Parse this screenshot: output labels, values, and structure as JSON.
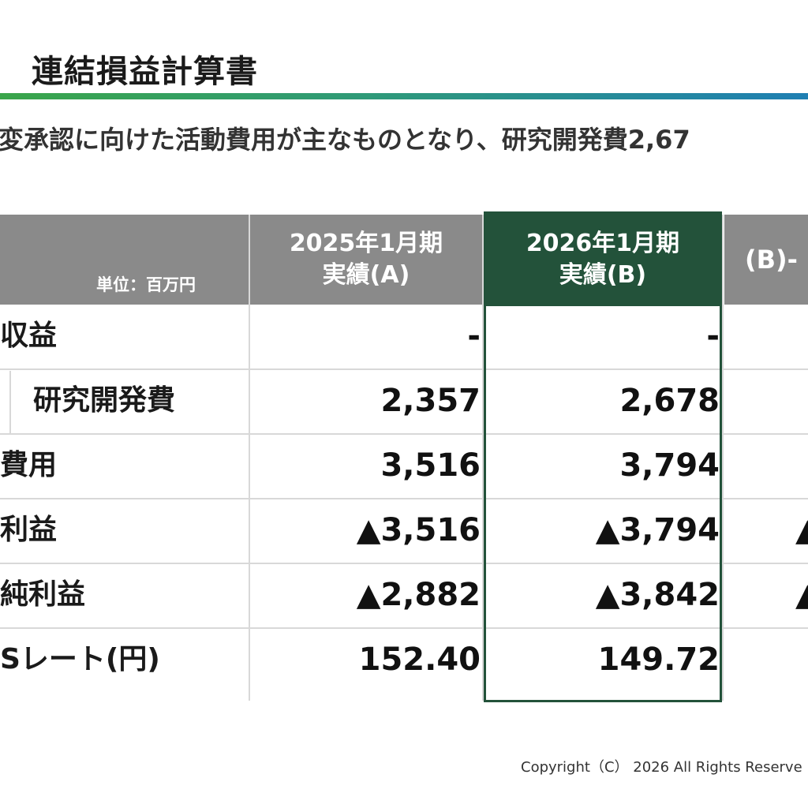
{
  "title": "連結損益計算書",
  "subtitle": "･変承認に向けた活動費用が主なものとなり、研究開発費2,67",
  "table": {
    "unit_label": "単位：百万円",
    "headers": {
      "a_line1": "2025年1月期",
      "a_line2": "実績(A)",
      "b_line1": "2026年1月期",
      "b_line2": "実績(B)",
      "c": "(B)-"
    },
    "rows": [
      {
        "label": "収益",
        "a": "-",
        "b": "-",
        "c": ""
      },
      {
        "label": "研究開発費",
        "a": "2,357",
        "b": "2,678",
        "c": ""
      },
      {
        "label": "費用",
        "a": "3,516",
        "b": "3,794",
        "c": ""
      },
      {
        "label": "利益",
        "a": "▲3,516",
        "b": "▲3,794",
        "c": "▲"
      },
      {
        "label": "純利益",
        "a": "▲2,882",
        "b": "▲3,842",
        "c": "▲"
      },
      {
        "label": "Sレート(円)",
        "a": "152.40",
        "b": "149.72",
        "c": ""
      }
    ]
  },
  "footer": "Copyright（C） 2026 All Rights Reserve",
  "colors": {
    "header_gray": "#8a8a8a",
    "highlight_green": "#23523a",
    "rule_start": "#3aa54a",
    "rule_end": "#1f7fb3"
  }
}
